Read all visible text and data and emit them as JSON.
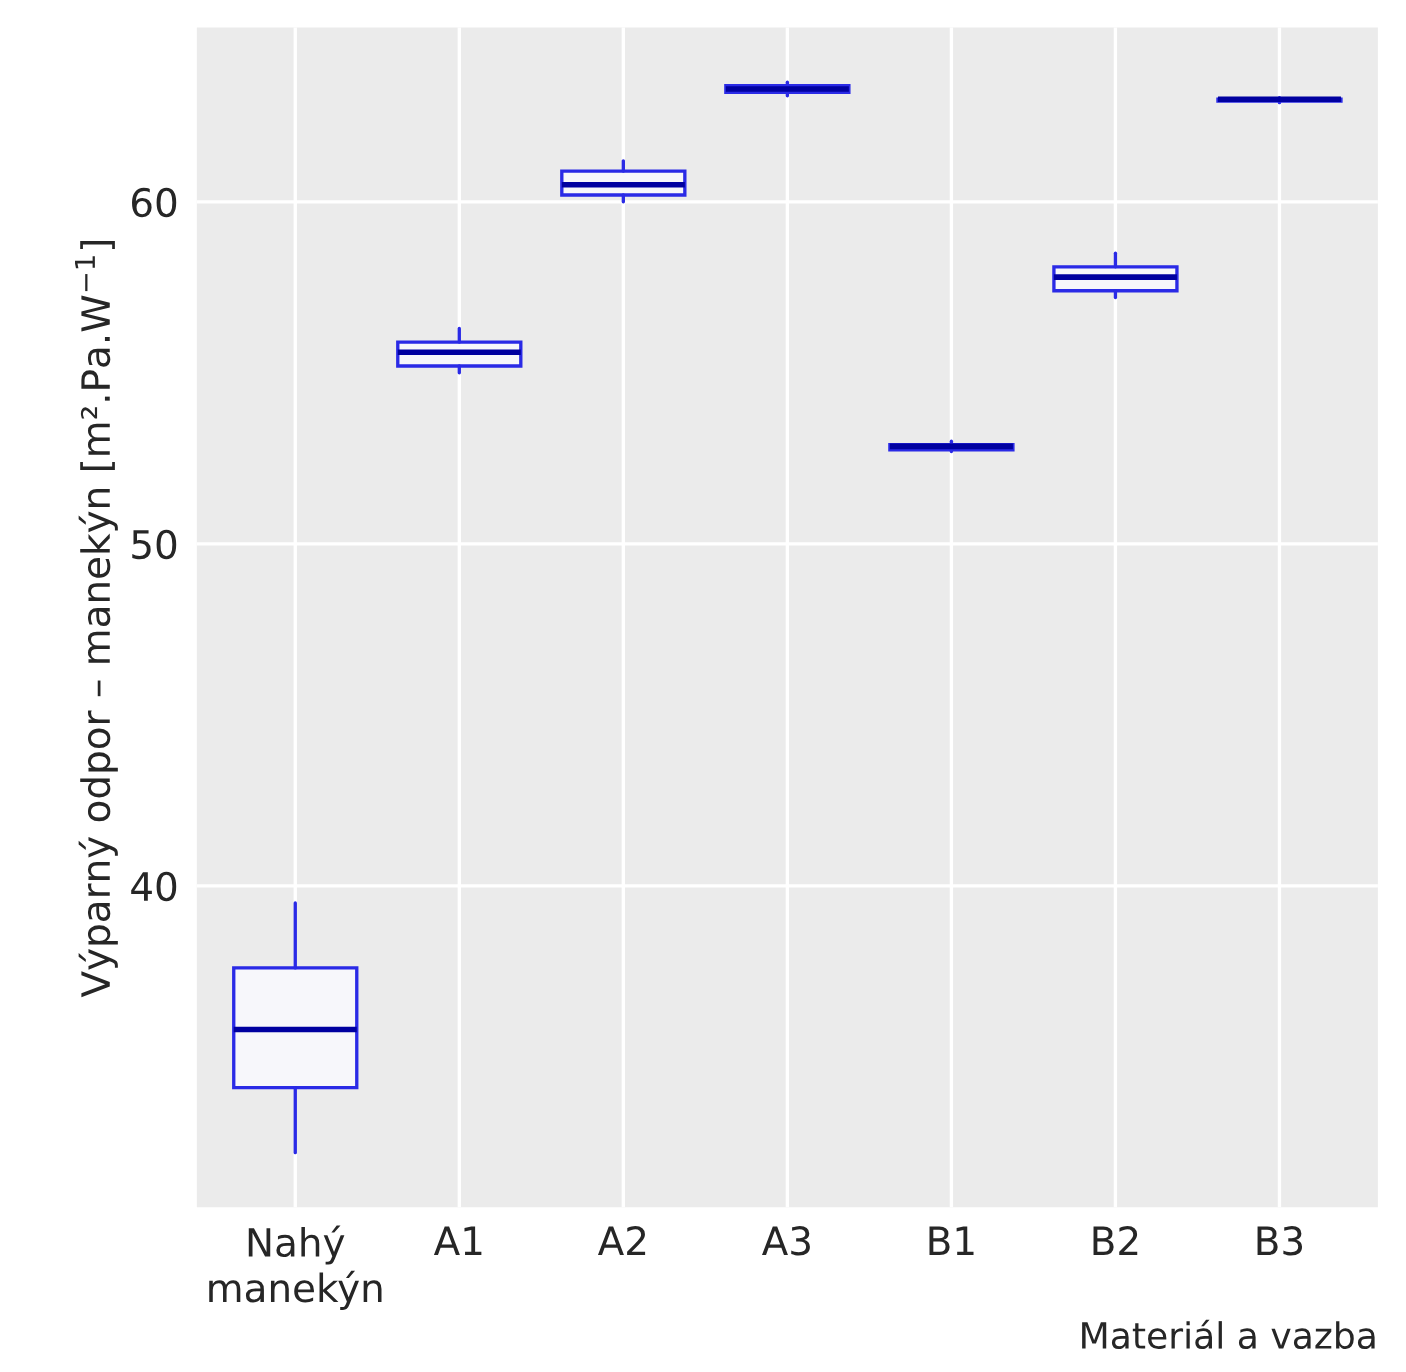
{
  "chart_data": {
    "type": "box",
    "xlabel": "Materiál a vazba",
    "ylabel": "Výparný odpor – manekýn [m².Pa.W$^{−1}$]",
    "categories": [
      "Nahý\nmanekýn",
      "A1",
      "A2",
      "A3",
      "B1",
      "B2",
      "B3"
    ],
    "series": [
      {
        "color": "#2a2ae6",
        "boxes": [
          {
            "low": 32.2,
            "q1": 34.1,
            "median": 35.8,
            "q3": 37.6,
            "high": 39.5
          },
          {
            "low": 55.0,
            "q1": 55.2,
            "median": 55.6,
            "q3": 55.9,
            "high": 56.3
          },
          {
            "low": 60.0,
            "q1": 60.2,
            "median": 60.5,
            "q3": 60.9,
            "high": 61.2
          },
          {
            "low": 63.1,
            "q1": 63.2,
            "median": 63.3,
            "q3": 63.4,
            "high": 63.5
          },
          {
            "low": 52.7,
            "q1": 52.75,
            "median": 52.85,
            "q3": 52.9,
            "high": 53.0
          },
          {
            "low": 57.2,
            "q1": 57.4,
            "median": 57.8,
            "q3": 58.1,
            "high": 58.5
          },
          {
            "low": 62.9,
            "q1": 62.95,
            "median": 63.0,
            "q3": 63.0,
            "high": 63.05
          }
        ]
      }
    ],
    "ylim": [
      30.6,
      65.1
    ],
    "yticks": [
      40,
      50,
      60
    ],
    "grid": true
  }
}
